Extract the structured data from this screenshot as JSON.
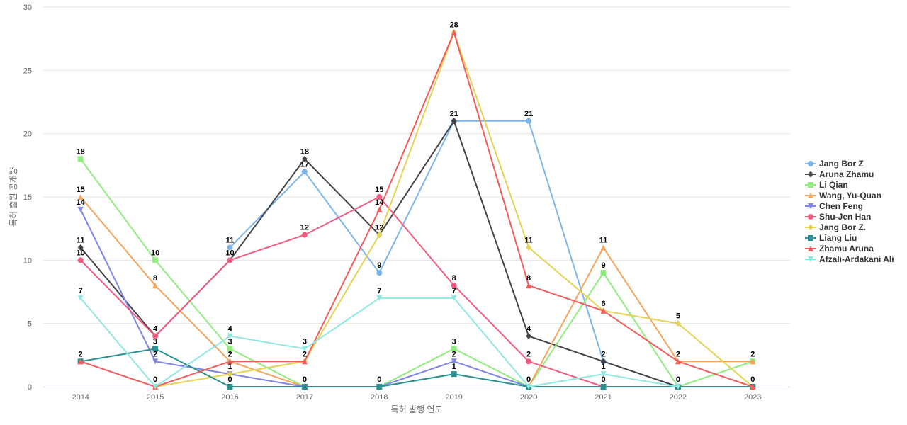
{
  "chart_data": {
    "type": "line",
    "title": "",
    "xlabel": "특허 발행 연도",
    "ylabel": "특허 출원 공개량",
    "categories": [
      "2014",
      "2015",
      "2016",
      "2017",
      "2018",
      "2019",
      "2020",
      "2021",
      "2022",
      "2023"
    ],
    "ylim": [
      0,
      30
    ],
    "yticks": [
      0,
      5,
      10,
      15,
      20,
      25,
      30
    ],
    "grid": true,
    "legend_position": "right",
    "series": [
      {
        "name": "Jang Bor Z",
        "color": "#7cb5ec",
        "marker": "circle",
        "values": [
          null,
          null,
          11,
          17,
          null,
          21,
          21,
          2,
          null,
          null
        ],
        "labeled": [
          false,
          false,
          true,
          true,
          false,
          true,
          true,
          false,
          false,
          false
        ],
        "all_values": [
          null,
          null,
          11,
          17,
          9,
          21,
          21,
          2,
          null,
          null
        ]
      },
      {
        "name": "Aruna Zhamu",
        "color": "#434348",
        "marker": "diamond",
        "values": [
          11,
          4,
          10,
          18,
          12,
          21,
          4,
          2,
          0,
          null
        ]
      },
      {
        "name": "Li Qian",
        "color": "#90ed7d",
        "marker": "square",
        "values": [
          18,
          10,
          3,
          0,
          0,
          3,
          0,
          9,
          0,
          2
        ]
      },
      {
        "name": "Wang, Yu-Quan",
        "color": "#f7a35c",
        "marker": "triangle",
        "values": [
          15,
          8,
          2,
          0,
          null,
          null,
          0,
          11,
          2,
          2
        ]
      },
      {
        "name": "Chen Feng",
        "color": "#8085e9",
        "marker": "triangle-down",
        "values": [
          14,
          2,
          1,
          0,
          0,
          2,
          0,
          null,
          null,
          null
        ]
      },
      {
        "name": "Shu-Jen Han",
        "color": "#f15c80",
        "marker": "circle",
        "values": [
          10,
          4,
          10,
          12,
          15,
          8,
          2,
          0,
          null,
          null
        ]
      },
      {
        "name": "Jang Bor Z.",
        "color": "#e4d354",
        "marker": "diamond",
        "values": [
          null,
          0,
          1,
          2,
          12,
          28,
          11,
          6,
          5,
          0
        ]
      },
      {
        "name": "Liang Liu",
        "color": "#2b908f",
        "marker": "square",
        "values": [
          2,
          3,
          0,
          0,
          0,
          1,
          0,
          0,
          0,
          0
        ]
      },
      {
        "name": "Zhamu Aruna",
        "color": "#f45b5b",
        "marker": "triangle",
        "values": [
          2,
          0,
          2,
          2,
          14,
          28,
          8,
          6,
          2,
          0
        ]
      },
      {
        "name": "Afzali-Ardakani Ali",
        "color": "#91e8e1",
        "marker": "triangle-down",
        "values": [
          7,
          0,
          4,
          3,
          7,
          7,
          0,
          1,
          0,
          null
        ]
      }
    ],
    "data_labels": [
      {
        "x": "2014",
        "value": "18"
      },
      {
        "x": "2014",
        "value": "15"
      },
      {
        "x": "2014",
        "value": "14"
      },
      {
        "x": "2014",
        "value": "11"
      },
      {
        "x": "2014",
        "value": "10"
      },
      {
        "x": "2014",
        "value": "7"
      },
      {
        "x": "2014",
        "value": "2"
      },
      {
        "x": "2015",
        "value": "10"
      },
      {
        "x": "2015",
        "value": "8"
      },
      {
        "x": "2015",
        "value": "4"
      },
      {
        "x": "2015",
        "value": "3"
      },
      {
        "x": "2015",
        "value": "2"
      },
      {
        "x": "2015",
        "value": "0"
      },
      {
        "x": "2016",
        "value": "11"
      },
      {
        "x": "2016",
        "value": "10"
      },
      {
        "x": "2016",
        "value": "4"
      },
      {
        "x": "2016",
        "value": "3"
      },
      {
        "x": "2016",
        "value": "2"
      },
      {
        "x": "2016",
        "value": "1"
      },
      {
        "x": "2016",
        "value": "0"
      },
      {
        "x": "2017",
        "value": "18"
      },
      {
        "x": "2017",
        "value": "17"
      },
      {
        "x": "2017",
        "value": "12"
      },
      {
        "x": "2017",
        "value": "3"
      },
      {
        "x": "2017",
        "value": "2"
      },
      {
        "x": "2017",
        "value": "0"
      },
      {
        "x": "2018",
        "value": "15"
      },
      {
        "x": "2018",
        "value": "14"
      },
      {
        "x": "2018",
        "value": "12"
      },
      {
        "x": "2018",
        "value": "9"
      },
      {
        "x": "2018",
        "value": "7"
      },
      {
        "x": "2018",
        "value": "0"
      },
      {
        "x": "2019",
        "value": "28"
      },
      {
        "x": "2019",
        "value": "21"
      },
      {
        "x": "2019",
        "value": "8"
      },
      {
        "x": "2019",
        "value": "7"
      },
      {
        "x": "2019",
        "value": "3"
      },
      {
        "x": "2019",
        "value": "2"
      },
      {
        "x": "2019",
        "value": "1"
      },
      {
        "x": "2020",
        "value": "21"
      },
      {
        "x": "2020",
        "value": "11"
      },
      {
        "x": "2020",
        "value": "8"
      },
      {
        "x": "2020",
        "value": "4"
      },
      {
        "x": "2020",
        "value": "2"
      },
      {
        "x": "2020",
        "value": "0"
      },
      {
        "x": "2021",
        "value": "11"
      },
      {
        "x": "2021",
        "value": "9"
      },
      {
        "x": "2021",
        "value": "6"
      },
      {
        "x": "2021",
        "value": "2"
      },
      {
        "x": "2021",
        "value": "1"
      },
      {
        "x": "2021",
        "value": "0"
      },
      {
        "x": "2022",
        "value": "5"
      },
      {
        "x": "2022",
        "value": "2"
      },
      {
        "x": "2022",
        "value": "0"
      },
      {
        "x": "2023",
        "value": "2"
      },
      {
        "x": "2023",
        "value": "0"
      }
    ]
  }
}
